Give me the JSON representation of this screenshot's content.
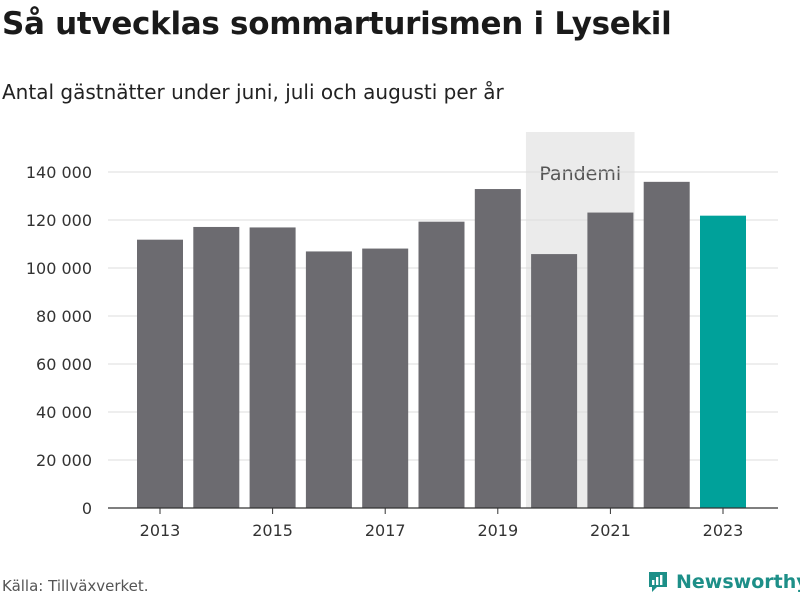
{
  "chart_data": {
    "type": "bar",
    "title": "Så utvecklas sommarturismen i Lysekil",
    "subtitle": "Antal gästnätter under juni, juli och augusti per år",
    "categories": [
      "2013",
      "2014",
      "2015",
      "2016",
      "2017",
      "2018",
      "2019",
      "2020",
      "2021",
      "2022",
      "2023"
    ],
    "values": [
      111800,
      117100,
      116900,
      106900,
      108100,
      119300,
      132900,
      105800,
      123100,
      135900,
      121800
    ],
    "ylim": [
      0,
      150000
    ],
    "yticks": [
      0,
      20000,
      40000,
      60000,
      80000,
      100000,
      120000,
      140000
    ],
    "ytick_labels": [
      "0",
      "20 000",
      "40 000",
      "60 000",
      "80 000",
      "100 000",
      "120 000",
      "140 000"
    ],
    "xtick_labels": [
      "2013",
      "2015",
      "2017",
      "2019",
      "2021",
      "2023"
    ],
    "grid": true,
    "bar_color": "#6c6b70",
    "highlight_category": "2023",
    "highlight_color": "#00a19a",
    "annotations": [
      {
        "label": "Pandemi",
        "x_start": "2020",
        "x_end": "2021",
        "fill": "#ebebeb"
      }
    ]
  },
  "footer": {
    "source": "Källa: Tillväxverket.",
    "brand": "Newsworthy"
  }
}
